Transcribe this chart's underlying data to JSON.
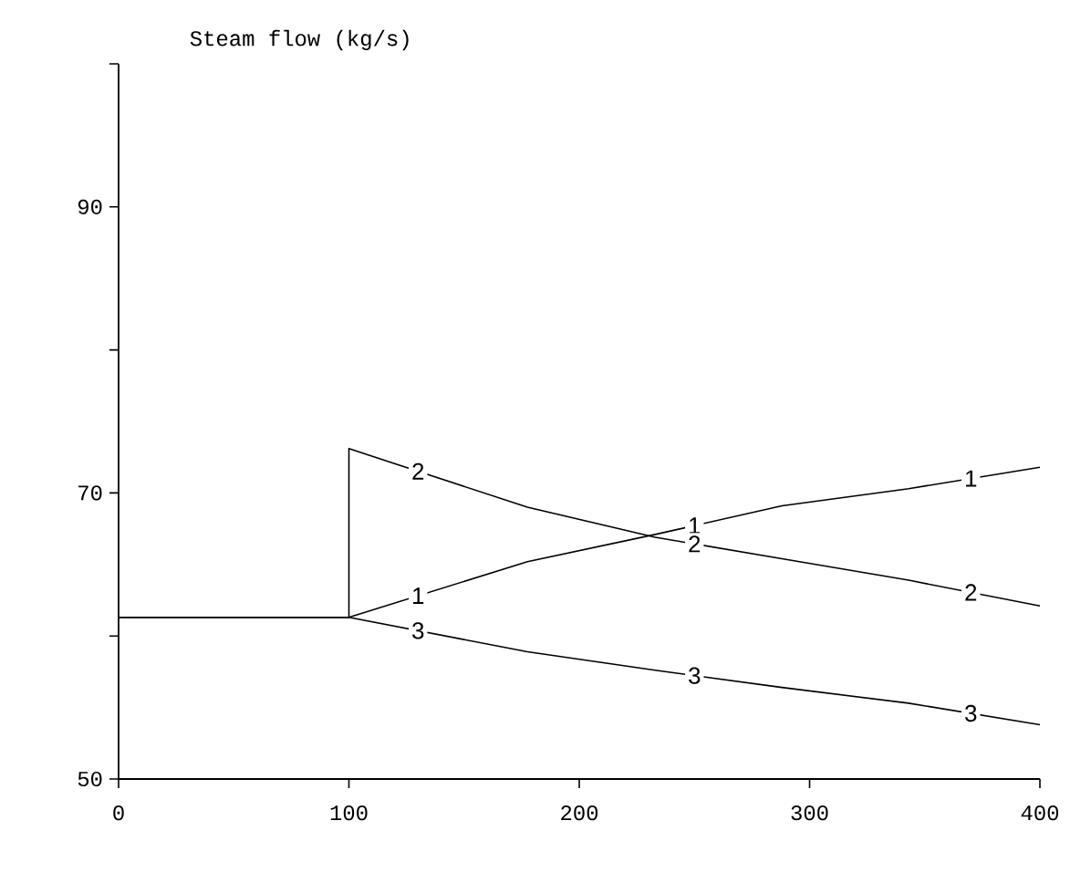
{
  "chart_data": {
    "type": "line",
    "ylabel": "Steam flow (kg/s)",
    "xlim": [
      0,
      400
    ],
    "xticks": [
      0,
      100,
      200,
      300,
      400
    ],
    "ylim": [
      50,
      100
    ],
    "yticks": [
      50,
      {
        "value": 60,
        "label": null
      },
      70,
      {
        "value": 80,
        "label": null
      },
      90,
      {
        "value": 100,
        "label": null
      }
    ],
    "grid": false,
    "legend": false,
    "marker": "none",
    "line_style": "solid",
    "series": [
      {
        "name": "1",
        "color": "#000000",
        "x": [
          0,
          100,
          177.5,
          233,
          288,
          343,
          400
        ],
        "values": [
          61.3,
          61.3,
          65.2,
          67.1,
          69.1,
          70.3,
          71.8
        ]
      },
      {
        "name": "2",
        "color": "#000000",
        "x": [
          0,
          100,
          100,
          177.5,
          233,
          288,
          343,
          400
        ],
        "values": [
          61.3,
          61.3,
          73.1,
          69.0,
          66.9,
          65.4,
          63.9,
          62.1
        ]
      },
      {
        "name": "3",
        "color": "#000000",
        "x": [
          0,
          100,
          177.5,
          233,
          288,
          343,
          400
        ],
        "values": [
          61.3,
          61.3,
          58.9,
          57.6,
          56.4,
          55.3,
          53.8
        ]
      }
    ]
  }
}
